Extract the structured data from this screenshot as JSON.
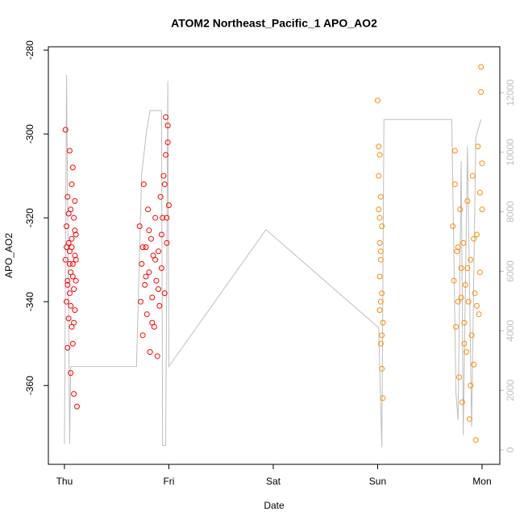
{
  "chart_data": {
    "type": "scatter",
    "title": "ATOM2 Northeast_Pacific_1 APO_AO2",
    "x_label": "Date",
    "y_label": "APO_AO2",
    "xlim": [
      -0.154,
      4.17
    ],
    "xticks": [
      {
        "value": 0,
        "label": "Thu"
      },
      {
        "value": 1,
        "label": "Fri"
      },
      {
        "value": 2,
        "label": "Sat"
      },
      {
        "value": 3,
        "label": "Sun"
      },
      {
        "value": 4,
        "label": "Mon"
      }
    ],
    "ylim": [
      -378.8,
      -279.2
    ],
    "yticks": [
      -280,
      -300,
      -320,
      -340,
      -360
    ],
    "y2lim": [
      -488,
      13544
    ],
    "y2ticks": [
      0,
      2000,
      4000,
      6000,
      8000,
      10000,
      12000
    ],
    "series": [
      {
        "type": "line",
        "axis": "y2",
        "color": "#bebebe",
        "x": [
          0.0,
          0.02,
          0.05,
          0.06,
          0.69,
          0.74,
          0.79,
          0.82,
          0.93,
          0.94,
          0.97,
          0.99,
          1.0,
          1.93,
          3.01,
          3.04,
          3.06,
          3.71,
          3.75,
          3.77,
          3.8,
          3.82,
          3.86,
          3.9,
          3.94,
          3.99
        ],
        "values": [
          200,
          12600,
          200,
          2800,
          2800,
          9300,
          10800,
          11400,
          11400,
          150,
          150,
          12400,
          2800,
          7400,
          4100,
          80,
          11100,
          11100,
          1900,
          1000,
          9700,
          500,
          10200,
          760,
          10500,
          11100
        ]
      },
      {
        "type": "scatter",
        "color": "#ff0000",
        "x": [
          0.01,
          0.01,
          0.02,
          0.02,
          0.03,
          0.03,
          0.03,
          0.04,
          0.04,
          0.05,
          0.05,
          0.05,
          0.06,
          0.06,
          0.06,
          0.07,
          0.07,
          0.07,
          0.08,
          0.08,
          0.08,
          0.09,
          0.09,
          0.09,
          0.1,
          0.1,
          0.1,
          0.11,
          0.11,
          0.12,
          0.02,
          0.04,
          0.06,
          0.08,
          0.1,
          0.03,
          0.05,
          0.07,
          0.09,
          0.11,
          0.72,
          0.73,
          0.74,
          0.75,
          0.76,
          0.77,
          0.78,
          0.79,
          0.8,
          0.81,
          0.82,
          0.83,
          0.84,
          0.85,
          0.86,
          0.87,
          0.88,
          0.89,
          0.9,
          0.91,
          0.92,
          0.93,
          0.94,
          0.95,
          0.96,
          0.97,
          0.98,
          0.99,
          1.0,
          0.75,
          0.78,
          0.81,
          0.84,
          0.87,
          0.9,
          0.93,
          0.96,
          0.99,
          0.98,
          0.97
        ],
        "values": [
          -330,
          -299,
          -340,
          -322,
          -351,
          -315,
          -335,
          -326,
          -344,
          -304,
          -328,
          -338,
          -318,
          -333,
          -357,
          -312,
          -325,
          -346,
          -308,
          -331,
          -350,
          -320,
          -337,
          -362,
          -316,
          -329,
          -342,
          -324,
          -335,
          -365,
          -327,
          -319,
          -341,
          -334,
          -323,
          -336,
          -331,
          -327,
          -345,
          -330,
          -322,
          -340,
          -331,
          -348,
          -312,
          -336,
          -327,
          -343,
          -318,
          -333,
          -352,
          -325,
          -339,
          -329,
          -346,
          -320,
          -335,
          -353,
          -328,
          -341,
          -315,
          -332,
          -320,
          -310,
          -338,
          -305,
          -326,
          -298,
          -317,
          -327,
          -334,
          -323,
          -345,
          -330,
          -337,
          -324,
          -312,
          -302,
          -320,
          -296
        ]
      },
      {
        "type": "scatter",
        "color": "#ff8c00",
        "x": [
          3.0,
          3.01,
          3.01,
          3.02,
          3.02,
          3.02,
          3.03,
          3.03,
          3.03,
          3.04,
          3.04,
          3.04,
          3.05,
          3.05,
          3.01,
          3.02,
          3.03,
          3.04,
          3.02,
          3.03,
          3.72,
          3.73,
          3.74,
          3.75,
          3.76,
          3.77,
          3.78,
          3.79,
          3.8,
          3.81,
          3.82,
          3.83,
          3.84,
          3.85,
          3.86,
          3.87,
          3.88,
          3.89,
          3.9,
          3.91,
          3.92,
          3.93,
          3.94,
          3.95,
          3.96,
          3.97,
          3.98,
          3.99,
          4.0,
          3.74,
          3.77,
          3.8,
          3.83,
          3.86,
          3.89,
          3.92,
          3.95,
          3.98,
          3.99,
          4.0
        ],
        "values": [
          -292,
          -303,
          -318,
          -326,
          -342,
          -305,
          -330,
          -350,
          -315,
          -338,
          -356,
          -322,
          -345,
          -363,
          -310,
          -334,
          -328,
          -348,
          -320,
          -340,
          -322,
          -335,
          -312,
          -346,
          -328,
          -340,
          -358,
          -318,
          -332,
          -364,
          -326,
          -345,
          -336,
          -352,
          -316,
          -340,
          -368,
          -330,
          -348,
          -310,
          -355,
          -338,
          -373,
          -324,
          -303,
          -343,
          -333,
          -290,
          -318,
          -304,
          -327,
          -339,
          -350,
          -332,
          -360,
          -325,
          -341,
          -314,
          -284,
          -307
        ]
      }
    ]
  }
}
